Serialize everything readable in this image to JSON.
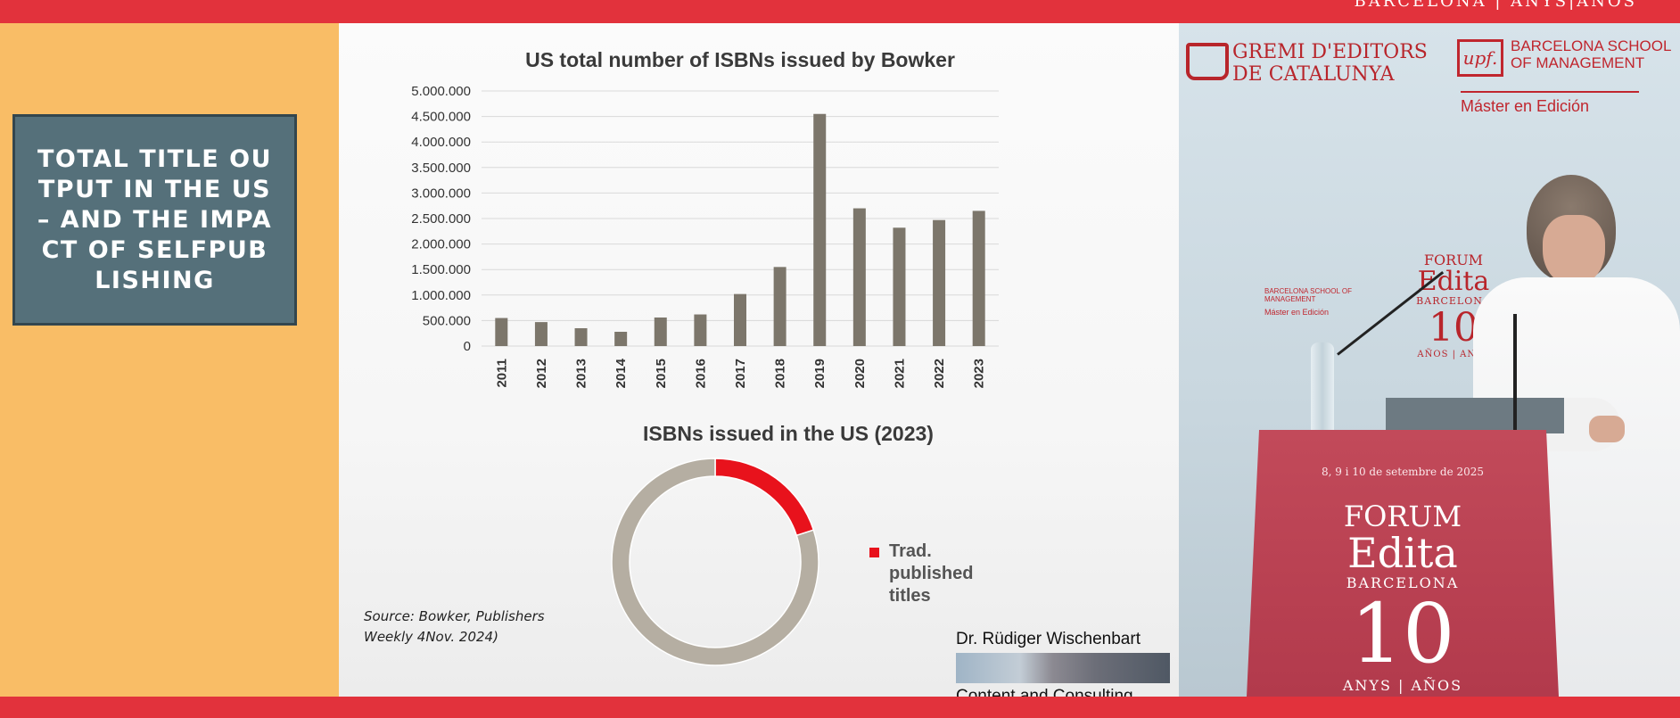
{
  "event": {
    "top_brand": "BARCELONA | ANYS|AÑOS",
    "gremi_logo": "GREMI D'EDITORS DE CATALUNYA",
    "upf_logo": "upf.",
    "upf_school": "BARCELONA SCHOOL OF MANAGEMENT",
    "master": "Máster en Edición",
    "forum_small": {
      "forum": "FORUM",
      "edita": "Edita",
      "city": "BARCELONA",
      "ten": "10",
      "years": "AÑOS | ANYS"
    },
    "upf_small_school": "BARCELONA SCHOOL OF MANAGEMENT",
    "upf_small_master": "Máster en Edición",
    "podium": {
      "date": "8, 9 i 10 de setembre de 2025",
      "forum": "FORUM",
      "edita": "Edita",
      "city": "BARCELONA",
      "ten": "10",
      "years": "ANYS | AÑOS"
    }
  },
  "slide": {
    "title": "TOTAL TITLE OUTPUT IN THE US – AND THE IMPACT OF SELFPUBLISHING",
    "source": "Source: Bowker, Publishers Weekly 4Nov. 2024)",
    "author_name": "Dr. Rüdiger Wischenbart",
    "author_company": "Content and Consulting"
  },
  "chart_data": [
    {
      "type": "bar",
      "title": "US total number of ISBNs issued by Bowker",
      "categories": [
        "2011",
        "2012",
        "2013",
        "2014",
        "2015",
        "2016",
        "2017",
        "2018",
        "2019",
        "2020",
        "2021",
        "2022",
        "2023"
      ],
      "values": [
        550000,
        470000,
        350000,
        280000,
        560000,
        620000,
        1020000,
        1550000,
        4550000,
        2700000,
        2320000,
        2470000,
        2650000
      ],
      "ylim": [
        0,
        5000000
      ],
      "yticks": [
        0,
        500000,
        1000000,
        1500000,
        2000000,
        2500000,
        3000000,
        3500000,
        4000000,
        4500000,
        5000000
      ],
      "ytick_labels": [
        "0",
        "500.000",
        "1.000.000",
        "1.500.000",
        "2.000.000",
        "2.500.000",
        "3.000.000",
        "3.500.000",
        "4.000.000",
        "4.500.000",
        "5.000.000"
      ],
      "grid": true,
      "colors": {
        "bar": "#7c766b",
        "grid": "#d9d9d9"
      }
    },
    {
      "type": "pie",
      "title": "ISBNs issued in the US (2023)",
      "slices": [
        {
          "label": "Trad. published titles",
          "value": 20,
          "color": "#e8121c"
        },
        {
          "label": "",
          "value": 80,
          "color": "#b5aea2"
        }
      ],
      "legend_position": "right"
    }
  ]
}
